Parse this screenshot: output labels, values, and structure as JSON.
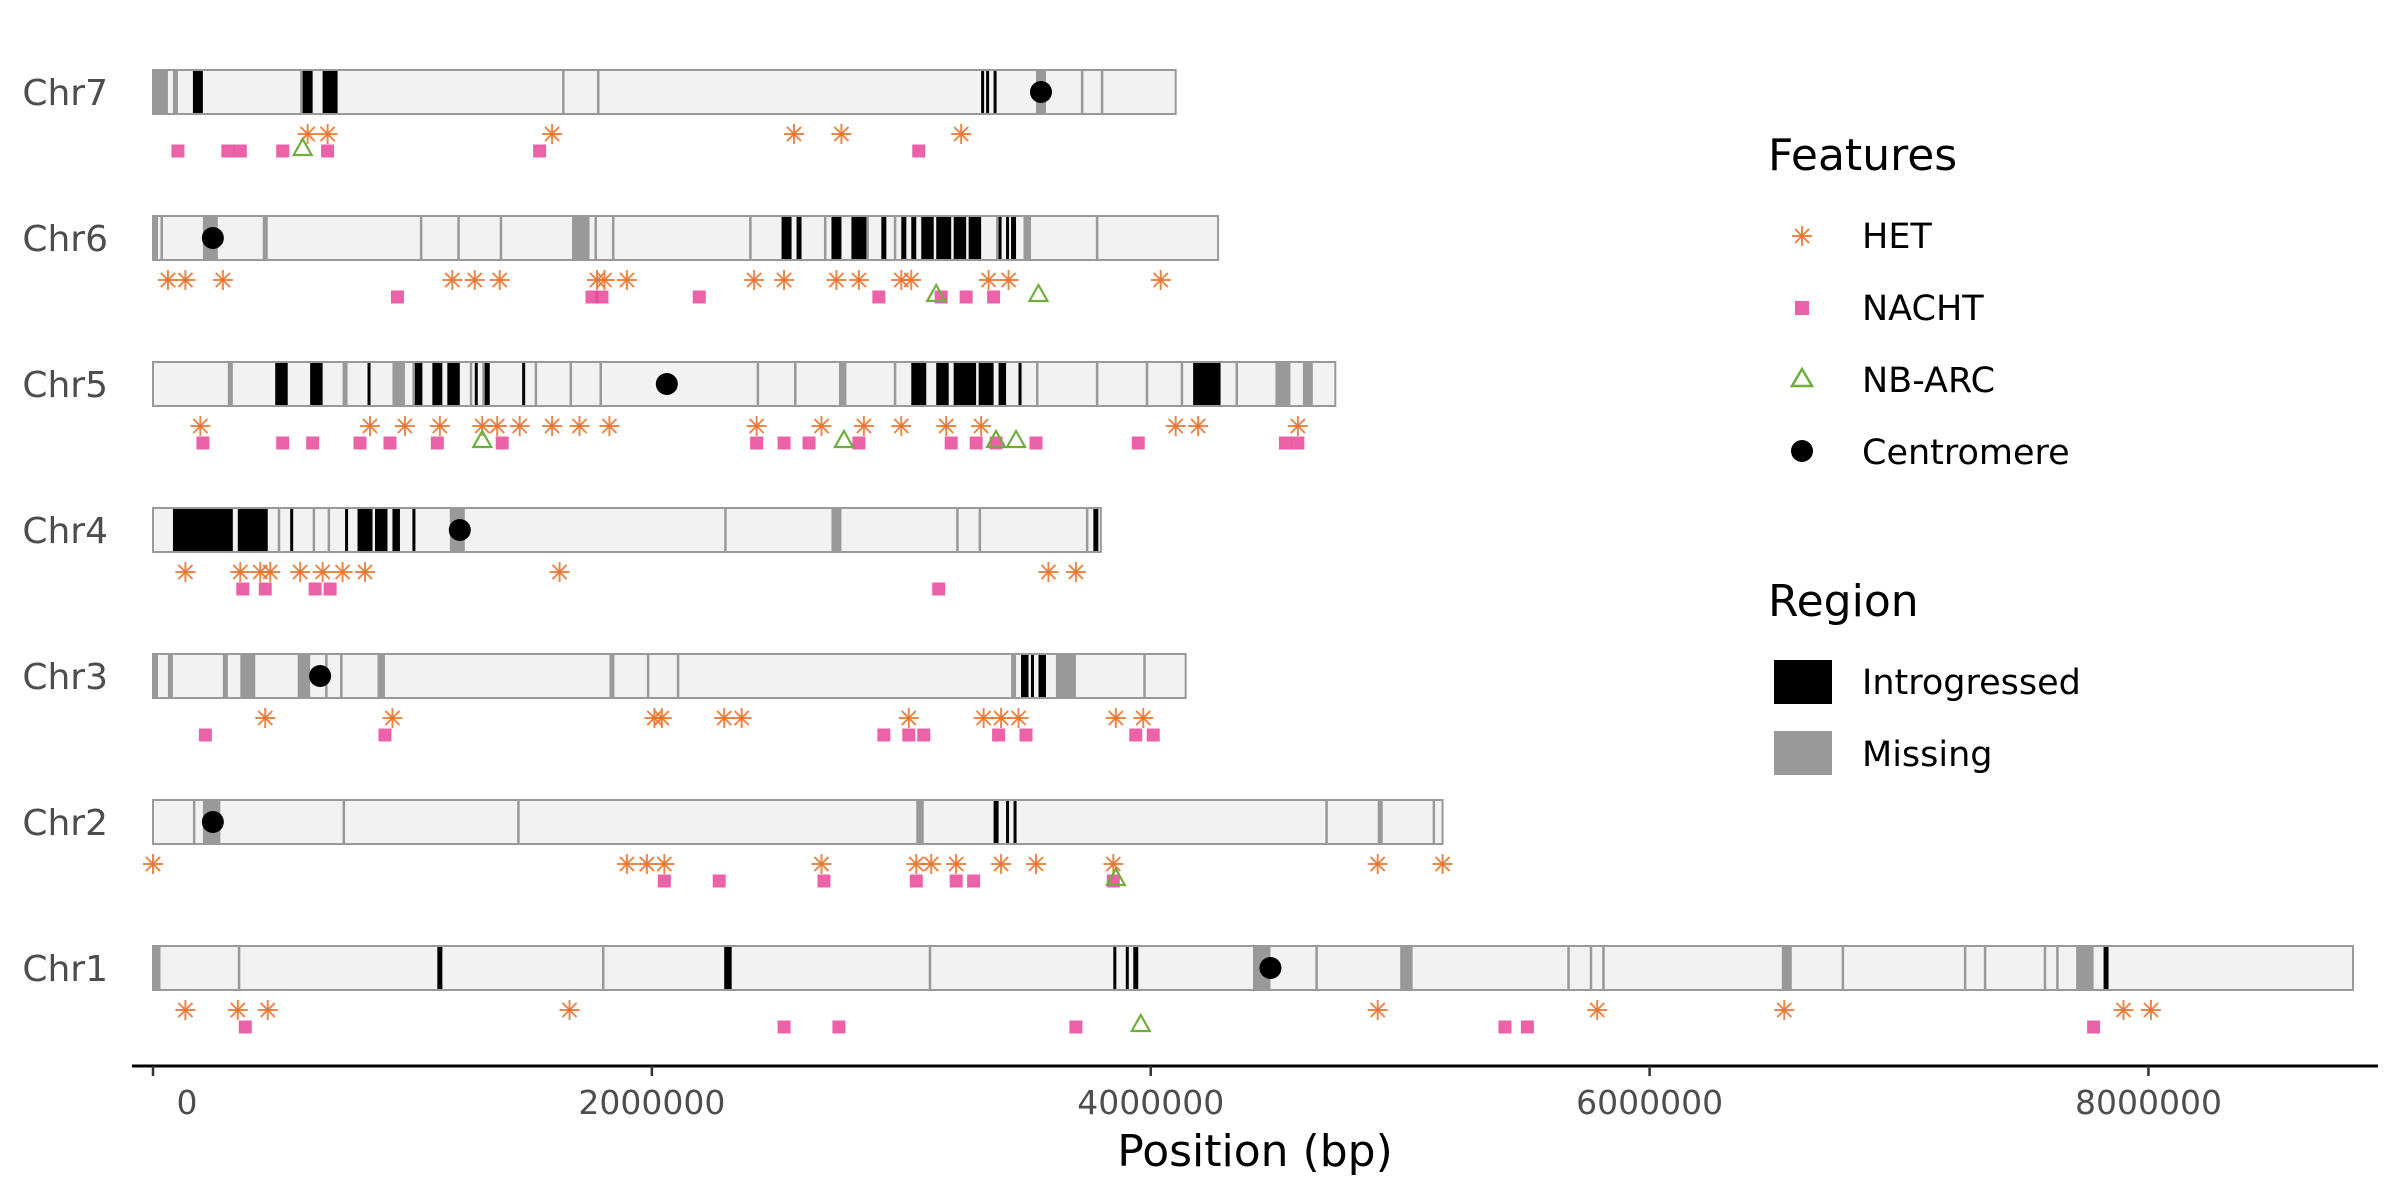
{
  "colors": {
    "chromosome_fill": "#f2f2f2",
    "chromosome_border": "#999999",
    "introgressed": "#000000",
    "missing": "#999999",
    "HET": "#e8722a",
    "NACHT": "#e7479a",
    "NB-ARC": "#6fae3c",
    "centromere": "#000000"
  },
  "legend": {
    "features_title": "Features",
    "features": [
      {
        "name": "HET",
        "shape": "asterisk"
      },
      {
        "name": "NACHT",
        "shape": "square"
      },
      {
        "name": "NB-ARC",
        "shape": "triangle"
      },
      {
        "name": "Centromere",
        "shape": "circle"
      }
    ],
    "region_title": "Region",
    "regions": [
      {
        "name": "Introgressed"
      },
      {
        "name": "Missing"
      }
    ]
  },
  "chart_data": {
    "type": "chromosome_ideogram",
    "xlabel": "Position (bp)",
    "ylabel": "",
    "xticks": [
      0,
      2000000,
      4000000,
      6000000,
      8000000
    ],
    "xtick_labels": [
      "0",
      "2000000",
      "4000000",
      "6000000",
      "8000000"
    ],
    "xlim": [
      -90000,
      8880000
    ],
    "chromosomes": [
      {
        "name": "Chr7",
        "length": 4100000,
        "centromere": 3560000,
        "introgressed": [
          [
            160000,
            200000
          ],
          [
            600000,
            640000
          ],
          [
            680000,
            740000
          ],
          [
            3320000,
            3330000
          ],
          [
            3340000,
            3350000
          ],
          [
            3370000,
            3380000
          ]
        ],
        "missing": [
          [
            0,
            60000
          ],
          [
            80000,
            100000
          ],
          [
            590000,
            600000
          ],
          [
            1640000,
            1650000
          ],
          [
            1780000,
            1790000
          ],
          [
            3540000,
            3580000
          ],
          [
            3720000,
            3730000
          ],
          [
            3800000,
            3810000
          ]
        ],
        "HET": [
          620000,
          700000,
          1600000,
          2570000,
          2760000,
          3240000
        ],
        "NACHT": [
          100000,
          300000,
          350000,
          520000,
          700000,
          1550000,
          3070000
        ],
        "NB-ARC": [
          600000
        ]
      },
      {
        "name": "Chr6",
        "length": 4270000,
        "centromere": 240000,
        "introgressed": [
          [
            2520000,
            2560000
          ],
          [
            2580000,
            2600000
          ],
          [
            2720000,
            2760000
          ],
          [
            2800000,
            2860000
          ],
          [
            2920000,
            2940000
          ],
          [
            3000000,
            3020000
          ],
          [
            3040000,
            3060000
          ],
          [
            3080000,
            3130000
          ],
          [
            3140000,
            3200000
          ],
          [
            3210000,
            3260000
          ],
          [
            3270000,
            3320000
          ],
          [
            3390000,
            3400000
          ],
          [
            3420000,
            3430000
          ],
          [
            3440000,
            3460000
          ]
        ],
        "missing": [
          [
            0,
            20000
          ],
          [
            30000,
            40000
          ],
          [
            200000,
            260000
          ],
          [
            440000,
            460000
          ],
          [
            1070000,
            1080000
          ],
          [
            1220000,
            1230000
          ],
          [
            1390000,
            1400000
          ],
          [
            1680000,
            1750000
          ],
          [
            1770000,
            1780000
          ],
          [
            1840000,
            1850000
          ],
          [
            2390000,
            2400000
          ],
          [
            2690000,
            2700000
          ],
          [
            2860000,
            2870000
          ],
          [
            2970000,
            2980000
          ],
          [
            3010000,
            3020000
          ],
          [
            3380000,
            3390000
          ],
          [
            3490000,
            3520000
          ],
          [
            3780000,
            3790000
          ]
        ],
        "HET": [
          60000,
          130000,
          280000,
          1200000,
          1290000,
          1390000,
          1780000,
          1810000,
          1900000,
          2410000,
          2530000,
          2740000,
          2830000,
          3000000,
          3040000,
          3350000,
          3430000,
          4040000
        ],
        "NACHT": [
          980000,
          1760000,
          1800000,
          2190000,
          2910000,
          3160000,
          3260000,
          3370000
        ],
        "NB-ARC": [
          3140000,
          3550000
        ]
      },
      {
        "name": "Chr5",
        "length": 4740000,
        "centromere": 2060000,
        "introgressed": [
          [
            490000,
            540000
          ],
          [
            630000,
            680000
          ],
          [
            860000,
            870000
          ],
          [
            1050000,
            1080000
          ],
          [
            1120000,
            1160000
          ],
          [
            1180000,
            1230000
          ],
          [
            1290000,
            1300000
          ],
          [
            1330000,
            1350000
          ],
          [
            1480000,
            1490000
          ],
          [
            3040000,
            3100000
          ],
          [
            3140000,
            3190000
          ],
          [
            3210000,
            3300000
          ],
          [
            3310000,
            3370000
          ],
          [
            3390000,
            3420000
          ],
          [
            3470000,
            3480000
          ],
          [
            4170000,
            4280000
          ]
        ],
        "missing": [
          [
            300000,
            320000
          ],
          [
            760000,
            780000
          ],
          [
            960000,
            1010000
          ],
          [
            1040000,
            1050000
          ],
          [
            1270000,
            1280000
          ],
          [
            1320000,
            1340000
          ],
          [
            1530000,
            1540000
          ],
          [
            1670000,
            1680000
          ],
          [
            1790000,
            1800000
          ],
          [
            2420000,
            2430000
          ],
          [
            2570000,
            2580000
          ],
          [
            2750000,
            2780000
          ],
          [
            2970000,
            2980000
          ],
          [
            3540000,
            3550000
          ],
          [
            3780000,
            3790000
          ],
          [
            3980000,
            3990000
          ],
          [
            4120000,
            4130000
          ],
          [
            4340000,
            4350000
          ],
          [
            4500000,
            4560000
          ],
          [
            4610000,
            4650000
          ]
        ],
        "HET": [
          190000,
          870000,
          1010000,
          1150000,
          1320000,
          1380000,
          1470000,
          1600000,
          1710000,
          1830000,
          2420000,
          2680000,
          2850000,
          3000000,
          3180000,
          3320000,
          4100000,
          4190000,
          4590000
        ],
        "NACHT": [
          200000,
          520000,
          640000,
          830000,
          950000,
          1140000,
          1400000,
          2420000,
          2530000,
          2630000,
          2830000,
          3200000,
          3300000,
          3380000,
          3540000,
          3950000,
          4540000,
          4590000
        ],
        "NB-ARC": [
          1320000,
          2770000,
          3380000,
          3460000
        ]
      },
      {
        "name": "Chr4",
        "length": 3800000,
        "centromere": 1230000,
        "introgressed": [
          [
            80000,
            320000
          ],
          [
            340000,
            460000
          ],
          [
            550000,
            560000
          ],
          [
            770000,
            780000
          ],
          [
            820000,
            880000
          ],
          [
            890000,
            940000
          ],
          [
            960000,
            990000
          ],
          [
            1040000,
            1050000
          ],
          [
            3770000,
            3790000
          ]
        ],
        "missing": [
          [
            500000,
            510000
          ],
          [
            640000,
            650000
          ],
          [
            700000,
            710000
          ],
          [
            1190000,
            1250000
          ],
          [
            2290000,
            2300000
          ],
          [
            2720000,
            2760000
          ],
          [
            3220000,
            3230000
          ],
          [
            3310000,
            3320000
          ],
          [
            3740000,
            3750000
          ]
        ],
        "HET": [
          130000,
          350000,
          430000,
          470000,
          590000,
          680000,
          760000,
          850000,
          1630000,
          3590000,
          3700000
        ],
        "NACHT": [
          360000,
          450000,
          650000,
          710000,
          3150000
        ],
        "NB-ARC": []
      },
      {
        "name": "Chr3",
        "length": 4140000,
        "centromere": 670000,
        "introgressed": [
          [
            3480000,
            3510000
          ],
          [
            3520000,
            3530000
          ],
          [
            3550000,
            3580000
          ]
        ],
        "missing": [
          [
            0,
            20000
          ],
          [
            60000,
            80000
          ],
          [
            280000,
            300000
          ],
          [
            350000,
            410000
          ],
          [
            580000,
            630000
          ],
          [
            690000,
            700000
          ],
          [
            750000,
            760000
          ],
          [
            900000,
            930000
          ],
          [
            1830000,
            1850000
          ],
          [
            1980000,
            1990000
          ],
          [
            2100000,
            2110000
          ],
          [
            3440000,
            3460000
          ],
          [
            3620000,
            3700000
          ],
          [
            3970000,
            3980000
          ]
        ],
        "HET": [
          450000,
          960000,
          2010000,
          2040000,
          2290000,
          2360000,
          3030000,
          3330000,
          3400000,
          3470000,
          3860000,
          3970000
        ],
        "NACHT": [
          210000,
          930000,
          2930000,
          3030000,
          3090000,
          3390000,
          3500000,
          3940000,
          4010000
        ],
        "NB-ARC": []
      },
      {
        "name": "Chr2",
        "length": 5170000,
        "centromere": 240000,
        "introgressed": [
          [
            3370000,
            3390000
          ],
          [
            3420000,
            3430000
          ],
          [
            3450000,
            3460000
          ]
        ],
        "missing": [
          [
            160000,
            170000
          ],
          [
            200000,
            270000
          ],
          [
            760000,
            770000
          ],
          [
            1460000,
            1470000
          ],
          [
            3060000,
            3090000
          ],
          [
            4700000,
            4710000
          ],
          [
            4910000,
            4930000
          ],
          [
            5130000,
            5140000
          ]
        ],
        "HET": [
          0,
          1900000,
          1980000,
          2050000,
          2680000,
          3060000,
          3120000,
          3220000,
          3400000,
          3540000,
          3850000,
          4910000,
          5170000
        ],
        "NACHT": [
          2050000,
          2270000,
          2690000,
          3060000,
          3220000,
          3290000,
          3850000
        ],
        "NB-ARC": [
          3860000
        ]
      },
      {
        "name": "Chr1",
        "length": 8820000,
        "centromere": 4480000,
        "introgressed": [
          [
            1140000,
            1160000
          ],
          [
            2290000,
            2320000
          ],
          [
            3850000,
            3860000
          ],
          [
            3900000,
            3910000
          ],
          [
            3930000,
            3950000
          ],
          [
            7820000,
            7840000
          ]
        ],
        "missing": [
          [
            0,
            30000
          ],
          [
            340000,
            350000
          ],
          [
            1800000,
            1810000
          ],
          [
            3110000,
            3120000
          ],
          [
            4410000,
            4480000
          ],
          [
            4660000,
            4670000
          ],
          [
            5000000,
            5050000
          ],
          [
            5670000,
            5680000
          ],
          [
            5760000,
            5770000
          ],
          [
            5810000,
            5820000
          ],
          [
            6530000,
            6570000
          ],
          [
            6770000,
            6780000
          ],
          [
            7260000,
            7270000
          ],
          [
            7340000,
            7350000
          ],
          [
            7580000,
            7590000
          ],
          [
            7630000,
            7640000
          ],
          [
            7710000,
            7780000
          ]
        ],
        "HET": [
          130000,
          340000,
          460000,
          1670000,
          4910000,
          5790000,
          6540000,
          7900000,
          8010000
        ],
        "NACHT": [
          370000,
          2530000,
          2750000,
          3700000,
          5420000,
          5510000,
          7780000
        ],
        "NB-ARC": [
          3960000
        ]
      }
    ]
  }
}
